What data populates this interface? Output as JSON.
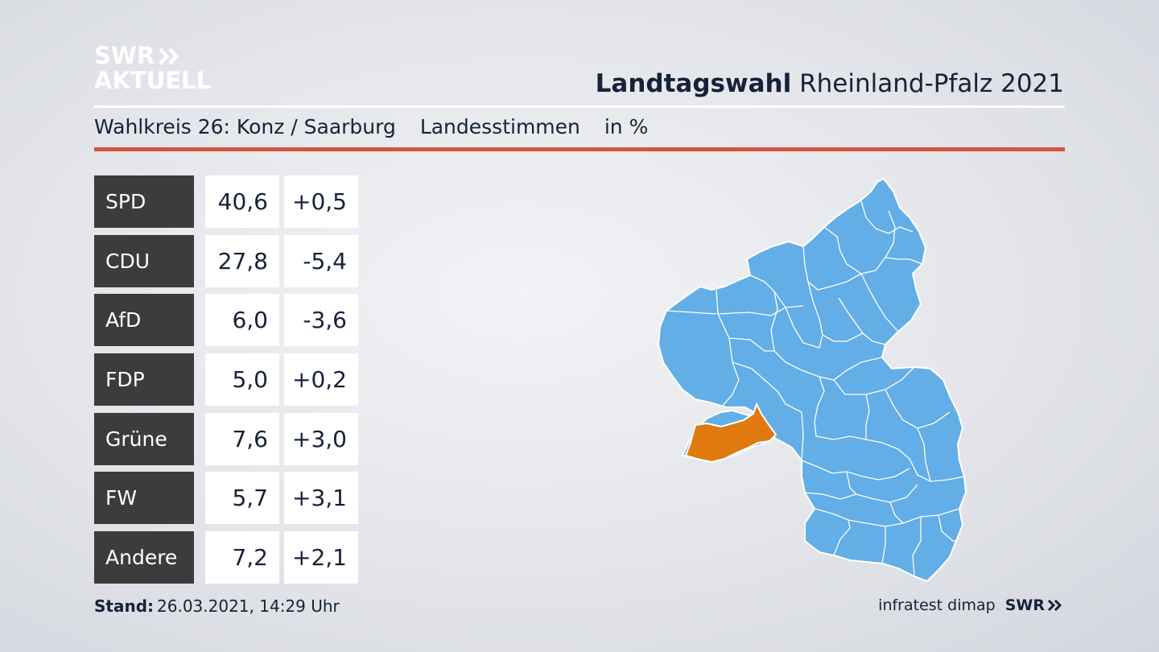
{
  "logo": {
    "line1": "SWR",
    "line2": "AKTUELL"
  },
  "header": {
    "title_bold": "Landtagswahl",
    "title_rest": "Rheinland-Pfalz 2021",
    "subtitle_district": "Wahlkreis 26: Konz / Saarburg",
    "subtitle_type": "Landesstimmen",
    "subtitle_unit": "in %"
  },
  "results": [
    {
      "party": "SPD",
      "share": "40,6",
      "change": "+0,5"
    },
    {
      "party": "CDU",
      "share": "27,8",
      "change": "-5,4"
    },
    {
      "party": "AfD",
      "share": "6,0",
      "change": "-3,6"
    },
    {
      "party": "FDP",
      "share": "5,0",
      "change": "+0,2"
    },
    {
      "party": "Grüne",
      "share": "7,6",
      "change": "+3,0"
    },
    {
      "party": "FW",
      "share": "5,7",
      "change": "+3,1"
    },
    {
      "party": "Andere",
      "share": "7,2",
      "change": "+2,1"
    }
  ],
  "map": {
    "state_color": "#63aee6",
    "highlight_color": "#e07a0f",
    "border_color": "#ffffff"
  },
  "colors": {
    "accent_rule": "#d4553c",
    "party_box": "#3c3c3c",
    "text": "#152238"
  },
  "footer": {
    "stand_label": "Stand:",
    "stand_value": "26.03.2021, 14:29 Uhr",
    "source": "infratest dimap",
    "brand": "SWR"
  }
}
